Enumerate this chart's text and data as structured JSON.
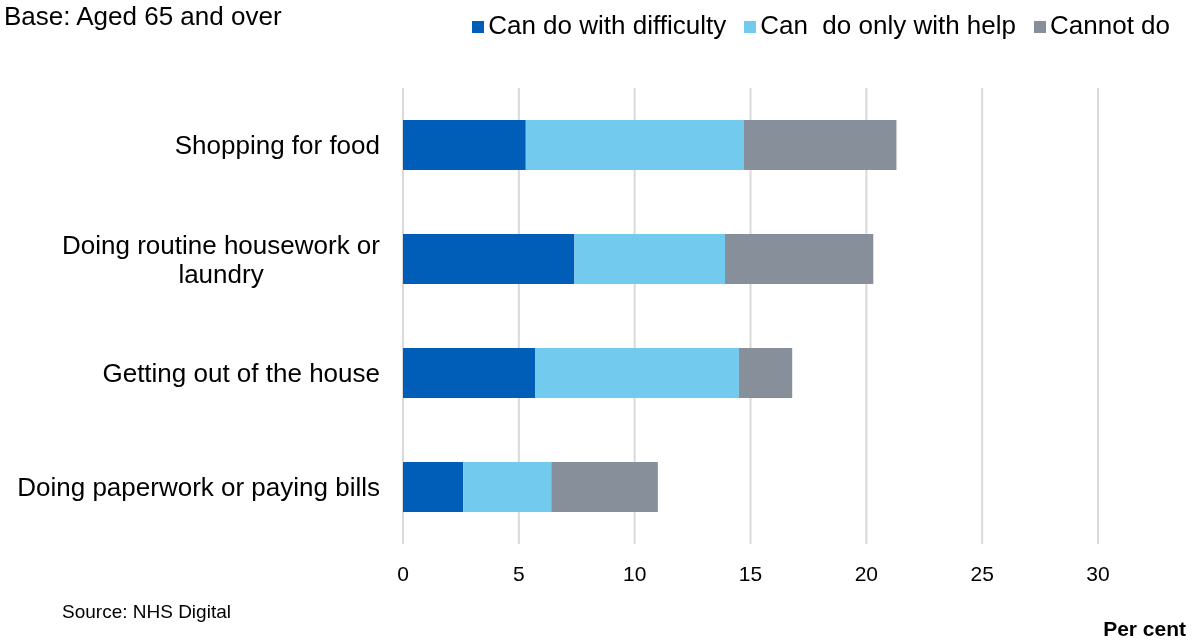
{
  "chart_data": {
    "type": "bar",
    "orientation": "horizontal",
    "stacked": true,
    "subtitle": "Base: Aged 65 and over",
    "xlabel": "Per cent",
    "annotations": [
      "Source: NHS Digital"
    ],
    "categories": [
      "Shopping for food",
      "Doing routine housework or laundry",
      "Getting out of the house",
      "Doing paperwork or paying bills"
    ],
    "series": [
      {
        "name": "Can do with difficulty",
        "color": "#005eb8",
        "values": [
          5.3,
          7.4,
          5.7,
          2.6
        ]
      },
      {
        "name": "Can  do only with help",
        "color": "#72cbee",
        "values": [
          9.4,
          6.5,
          8.8,
          3.8
        ]
      },
      {
        "name": "Cannot do",
        "color": "#868f9a",
        "values": [
          6.6,
          6.4,
          2.3,
          4.6
        ]
      }
    ],
    "xlim": [
      0,
      30
    ],
    "xticks": [
      0,
      5,
      10,
      15,
      20,
      25,
      30
    ],
    "grid": "x",
    "legend": "top right"
  }
}
